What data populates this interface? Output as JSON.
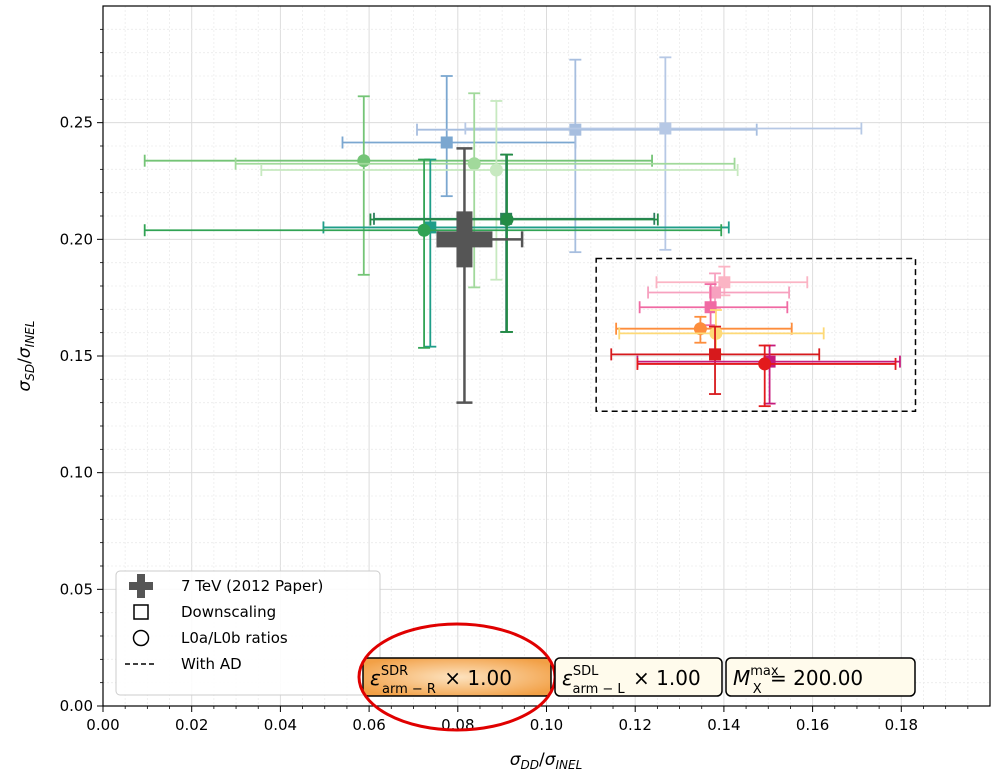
{
  "chart_data": {
    "type": "scatter",
    "xlabel": "σDD/σINEL",
    "ylabel": "σSD/σINEL",
    "xlim": [
      0.0,
      0.2
    ],
    "ylim": [
      0.0,
      0.3
    ],
    "xticks": [
      "0.00",
      "0.02",
      "0.04",
      "0.06",
      "0.08",
      "0.10",
      "0.12",
      "0.14",
      "0.16",
      "0.18"
    ],
    "yticks": [
      "0.00",
      "0.05",
      "0.10",
      "0.15",
      "0.20",
      "0.25"
    ],
    "grid": true,
    "legend_position": "lower-left",
    "legend": [
      {
        "label": "7 TeV (2012 Paper)",
        "marker": "plus"
      },
      {
        "label": "Downscaling",
        "marker": "square"
      },
      {
        "label": "L0a/L0b ratios",
        "marker": "circle"
      },
      {
        "label": "With AD",
        "marker": "dashed-line"
      }
    ],
    "reference_point": {
      "name": "7 TeV (2012 Paper)",
      "x": 0.0815,
      "y": 0.2,
      "xerr": [
        0.0755,
        0.0945
      ],
      "yerr": [
        0.13,
        0.239
      ],
      "color": "#555555"
    },
    "series": [
      {
        "marker": "square",
        "color": "#7ba7d0",
        "x": 0.0775,
        "y": 0.2415,
        "xerr": [
          0.054,
          0.1065
        ],
        "yerr": [
          0.2185,
          0.27
        ]
      },
      {
        "marker": "square",
        "color": "#a7bedf",
        "x": 0.1065,
        "y": 0.247,
        "xerr": [
          0.0708,
          0.1474
        ],
        "yerr": [
          0.1945,
          0.277
        ]
      },
      {
        "marker": "square",
        "color": "#b6c8e5",
        "x": 0.1268,
        "y": 0.2475,
        "xerr": [
          0.0817,
          0.171
        ],
        "yerr": [
          0.1955,
          0.278
        ]
      },
      {
        "marker": "circle",
        "color": "#74c476",
        "x": 0.0588,
        "y": 0.2337,
        "xerr": [
          0.0094,
          0.1238
        ],
        "yerr": [
          0.1848,
          0.2613
        ]
      },
      {
        "marker": "circle",
        "color": "#a1d99b",
        "x": 0.0837,
        "y": 0.2324,
        "xerr": [
          0.0299,
          0.1424
        ],
        "yerr": [
          0.1794,
          0.2626
        ]
      },
      {
        "marker": "circle",
        "color": "#c7e9c0",
        "x": 0.0887,
        "y": 0.2297,
        "xerr": [
          0.0357,
          0.1431
        ],
        "yerr": [
          0.1827,
          0.2593
        ]
      },
      {
        "marker": "square",
        "color": "#1f9e89",
        "x": 0.0738,
        "y": 0.2051,
        "xerr": [
          0.0497,
          0.1411
        ],
        "yerr": [
          0.154,
          0.2342
        ]
      },
      {
        "marker": "circle",
        "color": "#31a354",
        "x": 0.0724,
        "y": 0.2039,
        "xerr": [
          0.0094,
          0.1394
        ],
        "yerr": [
          0.1535,
          0.2342
        ]
      },
      {
        "marker": "square",
        "color": "#2c7f5e",
        "x": 0.0909,
        "y": 0.2088,
        "xerr": [
          0.0611,
          0.1243
        ],
        "yerr": [
          0.1603,
          0.2363
        ]
      },
      {
        "marker": "circle",
        "color": "#238b45",
        "x": 0.0911,
        "y": 0.2085,
        "xerr": [
          0.0603,
          0.1251
        ],
        "yerr": [
          0.1603,
          0.2363
        ]
      },
      {
        "marker": "square",
        "color": "#fbb4c4",
        "x": 0.1401,
        "y": 0.1816,
        "xerr": [
          0.1248,
          0.1588
        ],
        "yerr": [
          0.176,
          0.1883
        ]
      },
      {
        "marker": "square",
        "color": "#f7a1bf",
        "x": 0.138,
        "y": 0.1772,
        "xerr": [
          0.1229,
          0.1547
        ],
        "yerr": [
          0.1706,
          0.1854
        ]
      },
      {
        "marker": "square",
        "color": "#f06aa3",
        "x": 0.137,
        "y": 0.1709,
        "xerr": [
          0.121,
          0.1543
        ],
        "yerr": [
          0.1632,
          0.1808
        ]
      },
      {
        "marker": "circle",
        "color": "#fd8d3c",
        "x": 0.1347,
        "y": 0.1617,
        "xerr": [
          0.1157,
          0.1553
        ],
        "yerr": [
          0.1557,
          0.1668
        ]
      },
      {
        "marker": "circle",
        "color": "#fed976",
        "x": 0.1382,
        "y": 0.1597,
        "xerr": [
          0.1164,
          0.1625
        ],
        "yerr": [
          0.1509,
          0.1697
        ]
      },
      {
        "marker": "square",
        "color": "#d7191c",
        "x": 0.138,
        "y": 0.1507,
        "xerr": [
          0.1146,
          0.1615
        ],
        "yerr": [
          0.1337,
          0.1626
        ]
      },
      {
        "marker": "square",
        "color": "#c51b7d",
        "x": 0.1503,
        "y": 0.1476,
        "xerr": [
          0.1205,
          0.1797
        ],
        "yerr": [
          0.1296,
          0.1545
        ]
      },
      {
        "marker": "circle",
        "color": "#e31a1c",
        "x": 0.1492,
        "y": 0.1466,
        "xerr": [
          0.1205,
          0.1787
        ],
        "yerr": [
          0.1285,
          0.1545
        ]
      }
    ],
    "ad_box": {
      "x": [
        0.1112,
        0.1832
      ],
      "y": [
        0.1263,
        0.1918
      ]
    },
    "annotations": [
      {
        "prefix": "ε",
        "sup": "SDR",
        "sub": "arm − R",
        "suffix": " × 1.00",
        "highlighted": true
      },
      {
        "prefix": "ε",
        "sup": "SDL",
        "sub": "arm − L",
        "suffix": " × 1.00",
        "highlighted": false
      },
      {
        "prefix": "M",
        "sup": "max",
        "sub": "X",
        "suffix": " = 200.00",
        "highlighted": false
      }
    ]
  }
}
